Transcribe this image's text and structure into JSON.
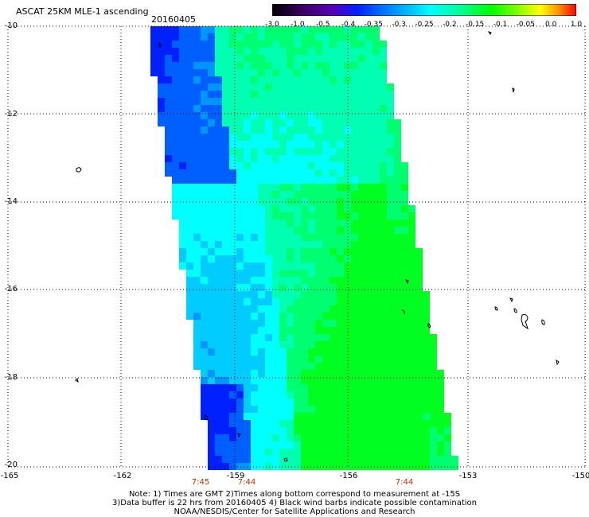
{
  "header": {
    "title": "ASCAT 25KM MLE-1 ascending",
    "date": "20160405"
  },
  "colorbar": {
    "labels": [
      "-3.0",
      "-1.0",
      "-0.5",
      "-0.4",
      "-0.35",
      "-0.3",
      "-0.25",
      "-0.2",
      "-0.15",
      "-0.1",
      "-0.05",
      "0.0",
      "1.0"
    ],
    "colors": [
      "#000000",
      "#3a0066",
      "#5a00b8",
      "#0020ff",
      "#0070ff",
      "#00b4ff",
      "#00ffff",
      "#00ff96",
      "#00ff00",
      "#78ff00",
      "#ffff00",
      "#ff9600",
      "#ff0000"
    ]
  },
  "axes": {
    "y_ticks": [
      "-10",
      "-12",
      "-14",
      "-16",
      "-18",
      "-20"
    ],
    "x_ticks": [
      "-165",
      "-162",
      "-159",
      "-156",
      "-153",
      "-150"
    ],
    "grid": true,
    "grid_style": "dotted"
  },
  "times": [
    "7:45",
    "7:44",
    "7:44"
  ],
  "notes": [
    "Note: 1) Times are GMT 2)Times along bottom correspond to measurement at -15S",
    "3)Data buffer is 22 hrs from 20160405 4) Black wind barbs indicate possible contamination",
    "NOAA/NESDIS/Center for Satellite Applications and Research"
  ],
  "swath": {
    "lon_range": [
      -165,
      -150
    ],
    "lat_range": [
      -20,
      -10
    ],
    "dominant_colors": [
      "#00ffff",
      "#00ff96",
      "#00ff00",
      "#0070ff"
    ]
  }
}
